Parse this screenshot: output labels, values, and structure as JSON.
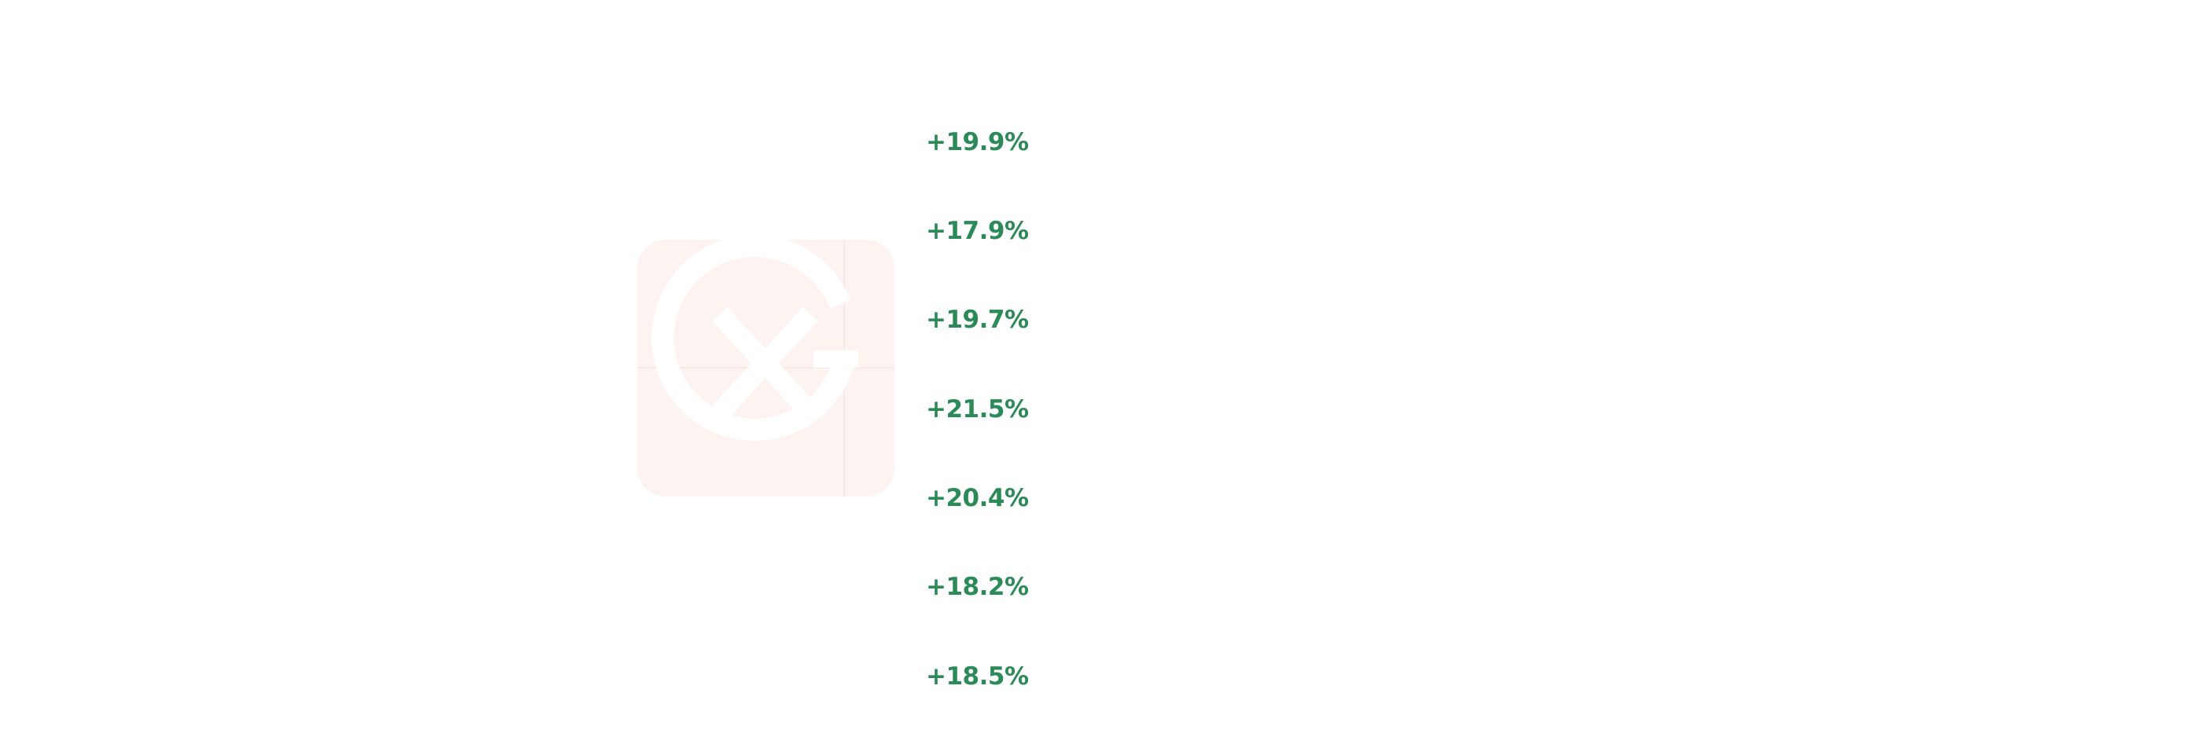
{
  "changes": [
    "+19.9%",
    "+17.9%",
    "+19.7%",
    "+21.5%",
    "+20.4%",
    "+18.2%",
    "+18.5%"
  ]
}
